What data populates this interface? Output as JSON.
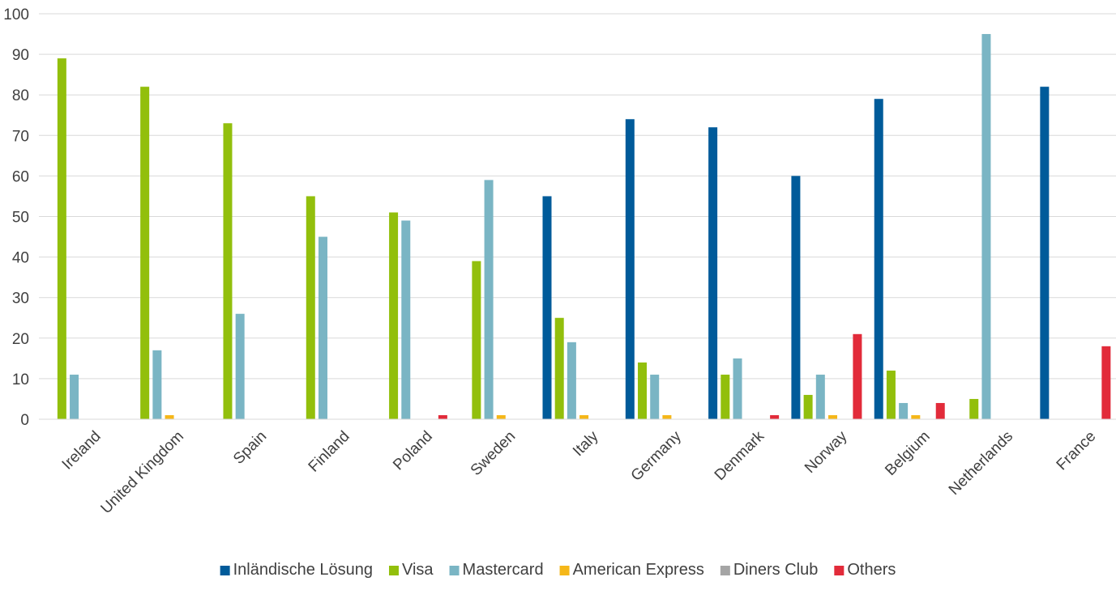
{
  "chart_data": {
    "type": "bar",
    "title": "",
    "xlabel": "",
    "ylabel": "",
    "ylim": [
      0,
      100
    ],
    "yticks": [
      0,
      10,
      20,
      30,
      40,
      50,
      60,
      70,
      80,
      90,
      100
    ],
    "grid": true,
    "legend_position": "bottom",
    "categories": [
      "Ireland",
      "United Kingdom",
      "Spain",
      "Finland",
      "Poland",
      "Sweden",
      "Italy",
      "Germany",
      "Denmark",
      "Norway",
      "Belgium",
      "Netherlands",
      "France"
    ],
    "series": [
      {
        "name": "Inländische Lösung",
        "color": "#005b9a",
        "values": [
          0,
          0,
          0,
          0,
          0,
          0,
          55,
          74,
          72,
          60,
          79,
          0,
          82
        ]
      },
      {
        "name": "Visa",
        "color": "#92bf0c",
        "values": [
          89,
          82,
          73,
          55,
          51,
          39,
          25,
          14,
          11,
          6,
          12,
          5,
          0
        ]
      },
      {
        "name": "Mastercard",
        "color": "#7ab5c4",
        "values": [
          11,
          17,
          26,
          45,
          49,
          59,
          19,
          11,
          15,
          11,
          4,
          95,
          0
        ]
      },
      {
        "name": "American Express",
        "color": "#f5b719",
        "values": [
          0,
          1,
          0,
          0,
          0,
          1,
          1,
          1,
          0,
          1,
          1,
          0,
          0
        ]
      },
      {
        "name": "Diners Club",
        "color": "#a5a5a5",
        "values": [
          0,
          0,
          0,
          0,
          0,
          0,
          0,
          0,
          0,
          0,
          0,
          0,
          0
        ]
      },
      {
        "name": "Others",
        "color": "#e22b3a",
        "values": [
          0,
          0,
          0,
          0,
          1,
          0,
          0,
          0,
          1,
          21,
          4,
          0,
          18
        ]
      }
    ]
  }
}
